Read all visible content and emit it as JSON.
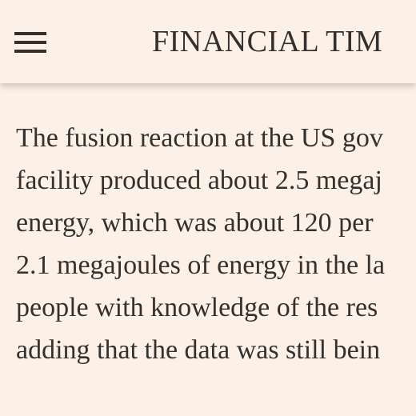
{
  "header": {
    "title": "FINANCIAL TIM"
  },
  "article": {
    "lines": [
      "The fusion reaction at the US gov",
      "facility produced about 2.5 megaj",
      "energy, which was about 120 per",
      "2.1 megajoules of energy in the la",
      "people with knowledge of the res",
      "adding that the data was still bein"
    ]
  }
}
